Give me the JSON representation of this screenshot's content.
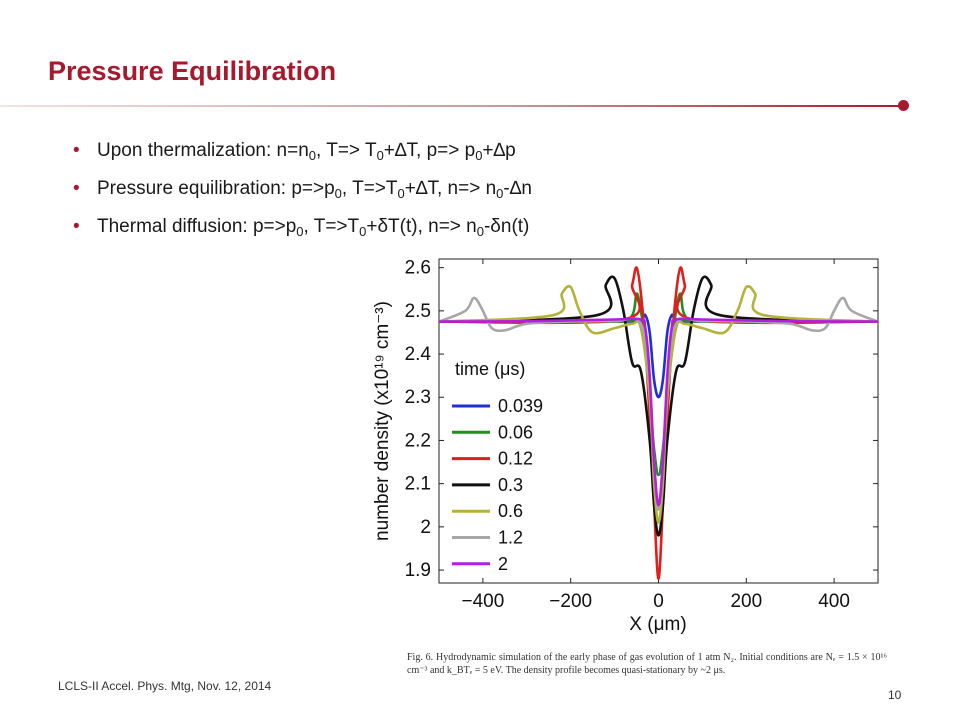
{
  "slide": {
    "title": "Pressure Equilibration",
    "footer": "LCLS-II Accel. Phys. Mtg, Nov. 12, 2014",
    "page_number": "10",
    "accent_color": "#a6192e"
  },
  "bullets": [
    {
      "label": "bullet-thermalization",
      "parts": [
        "Upon thermalization: n=n",
        {
          "sub": "0"
        },
        ", T=> T",
        {
          "sub": "0"
        },
        "+∆T, p=> p",
        {
          "sub": "0"
        },
        "+∆p"
      ]
    },
    {
      "label": "bullet-pressure-equilibration",
      "parts": [
        "Pressure equilibration: p=>p",
        {
          "sub": "0"
        },
        ", T=>T",
        {
          "sub": "0"
        },
        "+∆T, n=> n",
        {
          "sub": "0"
        },
        "-∆n"
      ]
    },
    {
      "label": "bullet-thermal-diffusion",
      "parts": [
        "Thermal diffusion: p=>p",
        {
          "sub": "0"
        },
        ", T=>T",
        {
          "sub": "0"
        },
        "+δT(t), n=> n",
        {
          "sub": "0"
        },
        "-δn(t)"
      ]
    }
  ],
  "caption": "Fig. 6. Hydrodynamic simulation of the early phase of gas evolution of 1 atm N₂. Initial conditions are Nₑ = 1.5 × 10¹⁶ cm⁻³ and k_BTₑ = 5 eV. The density profile becomes quasi-stationary by ~2 μs.",
  "chart_data": {
    "type": "line",
    "xlabel": "X (μm)",
    "ylabel": "number density (x10¹⁹ cm⁻³)",
    "xlim": [
      -500,
      500
    ],
    "ylim": [
      1.87,
      2.62
    ],
    "x_ticks": [
      -400,
      -200,
      0,
      200,
      400
    ],
    "x_tick_labels": [
      "−400",
      "−200",
      "0",
      "200",
      "400"
    ],
    "y_ticks": [
      1.9,
      2,
      2.1,
      2.2,
      2.3,
      2.4,
      2.5,
      2.6
    ],
    "y_tick_labels": [
      "1.9",
      "2",
      "2.1",
      "2.2",
      "2.3",
      "2.4",
      "2.5",
      "2.6"
    ],
    "grid": false,
    "legend": {
      "title": "time (μs)",
      "placement": "left"
    },
    "series": [
      {
        "name": "0.039",
        "color": "#1f2fd6",
        "x": [
          -500,
          -80,
          -40,
          -30,
          -20,
          -10,
          0,
          10,
          20,
          30,
          40,
          80,
          500
        ],
        "y": [
          2.475,
          2.475,
          2.48,
          2.49,
          2.45,
          2.34,
          2.3,
          2.34,
          2.45,
          2.49,
          2.48,
          2.475,
          2.475
        ]
      },
      {
        "name": "0.06",
        "color": "#1f8f1f",
        "x": [
          -500,
          -100,
          -60,
          -50,
          -40,
          -30,
          -20,
          -10,
          0,
          10,
          20,
          30,
          40,
          50,
          60,
          100,
          500
        ],
        "y": [
          2.475,
          2.475,
          2.49,
          2.54,
          2.5,
          2.42,
          2.3,
          2.18,
          2.12,
          2.18,
          2.3,
          2.42,
          2.5,
          2.54,
          2.49,
          2.475,
          2.475
        ]
      },
      {
        "name": "0.12",
        "color": "#e01e1e",
        "x": [
          -500,
          -80,
          -60,
          -50,
          -40,
          -30,
          -20,
          -10,
          0,
          10,
          20,
          30,
          40,
          50,
          60,
          80,
          500
        ],
        "y": [
          2.475,
          2.48,
          2.56,
          2.6,
          2.54,
          2.42,
          2.25,
          2.05,
          1.88,
          2.05,
          2.25,
          2.42,
          2.54,
          2.6,
          2.56,
          2.48,
          2.475
        ]
      },
      {
        "name": "0.3",
        "color": "#111111",
        "x": [
          -500,
          -140,
          -120,
          -100,
          -80,
          -60,
          -40,
          -20,
          -10,
          0,
          10,
          20,
          40,
          60,
          80,
          100,
          120,
          140,
          500
        ],
        "y": [
          2.475,
          2.49,
          2.56,
          2.575,
          2.5,
          2.38,
          2.36,
          2.2,
          2.05,
          1.98,
          2.05,
          2.2,
          2.36,
          2.38,
          2.5,
          2.575,
          2.56,
          2.49,
          2.475
        ]
      },
      {
        "name": "0.6",
        "color": "#b5b23a",
        "x": [
          -500,
          -240,
          -220,
          -200,
          -180,
          -150,
          -100,
          -60,
          -40,
          -20,
          -10,
          0,
          10,
          20,
          40,
          60,
          100,
          150,
          180,
          200,
          220,
          240,
          500
        ],
        "y": [
          2.475,
          2.49,
          2.54,
          2.555,
          2.5,
          2.45,
          2.46,
          2.47,
          2.46,
          2.3,
          2.1,
          2.01,
          2.1,
          2.3,
          2.46,
          2.47,
          2.46,
          2.45,
          2.5,
          2.555,
          2.54,
          2.49,
          2.475
        ]
      },
      {
        "name": "1.2",
        "color": "#a7a7a7",
        "x": [
          -500,
          -440,
          -420,
          -400,
          -380,
          -350,
          -300,
          -200,
          -100,
          -40,
          -20,
          -10,
          0,
          10,
          20,
          40,
          100,
          200,
          300,
          350,
          380,
          400,
          420,
          440,
          500
        ],
        "y": [
          2.475,
          2.5,
          2.53,
          2.5,
          2.46,
          2.455,
          2.47,
          2.475,
          2.476,
          2.47,
          2.33,
          2.15,
          2.04,
          2.15,
          2.33,
          2.47,
          2.476,
          2.475,
          2.47,
          2.455,
          2.46,
          2.5,
          2.53,
          2.5,
          2.475
        ]
      },
      {
        "name": "2",
        "color": "#b31fe0",
        "x": [
          -500,
          -300,
          -100,
          -40,
          -30,
          -20,
          -10,
          0,
          10,
          20,
          30,
          40,
          100,
          300,
          500
        ],
        "y": [
          2.475,
          2.476,
          2.48,
          2.48,
          2.46,
          2.35,
          2.15,
          2.05,
          2.15,
          2.35,
          2.46,
          2.48,
          2.48,
          2.476,
          2.475
        ]
      }
    ]
  }
}
